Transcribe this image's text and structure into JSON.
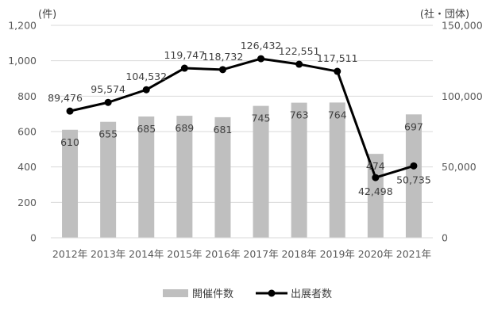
{
  "chart_data": {
    "type": "bar",
    "categories": [
      "2012年",
      "2013年",
      "2014年",
      "2015年",
      "2016年",
      "2017年",
      "2018年",
      "2019年",
      "2020年",
      "2021年"
    ],
    "series": [
      {
        "name": "開催件数",
        "type": "bar",
        "axis": "left",
        "color": "#bfbfbf",
        "values": [
          610,
          655,
          685,
          689,
          681,
          745,
          763,
          764,
          474,
          697
        ],
        "labels": [
          "610",
          "655",
          "685",
          "689",
          "681",
          "745",
          "763",
          "764",
          "474",
          "697"
        ]
      },
      {
        "name": "出展者数",
        "type": "line",
        "axis": "right",
        "color": "#000000",
        "values": [
          89476,
          95574,
          104532,
          119747,
          118732,
          126432,
          122551,
          117511,
          42498,
          50735
        ],
        "labels": [
          "89,476",
          "95,574",
          "104,532",
          "119,747",
          "118,732",
          "126,432",
          "122,551",
          "117,511",
          "42,498",
          "50,735"
        ]
      }
    ],
    "y_left": {
      "unit": "(件)",
      "ylim": [
        0,
        1200
      ],
      "ticks": [
        0,
        200,
        400,
        600,
        800,
        1000,
        1200
      ],
      "tick_labels": [
        "0",
        "200",
        "400",
        "600",
        "800",
        "1,000",
        "1,200"
      ]
    },
    "y_right": {
      "unit": "(社・団体)",
      "ylim": [
        0,
        150000
      ],
      "ticks": [
        0,
        50000,
        100000,
        150000
      ],
      "tick_labels": [
        "0",
        "50,000",
        "100,000",
        "150,000"
      ]
    },
    "grid": true,
    "legend": "bottom"
  }
}
